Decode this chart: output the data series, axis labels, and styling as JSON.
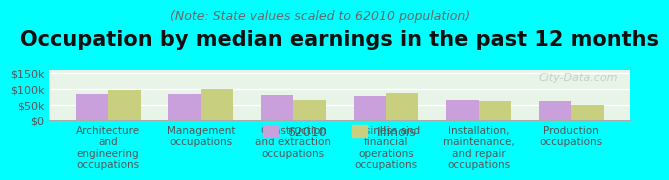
{
  "title": "Occupation by median earnings in the past 12 months",
  "subtitle": "(Note: State values scaled to 62010 population)",
  "categories": [
    "Architecture\nand\nengineering\noccupations",
    "Management\noccupations",
    "Construction\nand extraction\noccupations",
    "Business and\nfinancial\noperations\noccupations",
    "Installation,\nmaintenance,\nand repair\noccupations",
    "Production\noccupations"
  ],
  "values_62010": [
    85000,
    85000,
    80000,
    79000,
    65000,
    62000
  ],
  "values_illinois": [
    95000,
    99000,
    65000,
    87000,
    61000,
    48000
  ],
  "color_62010": "#c9a0dc",
  "color_illinois": "#c8d080",
  "background_color": "#00ffff",
  "plot_bg_gradient_top": "#e8f5e8",
  "plot_bg_gradient_bottom": "#f0f8f0",
  "ylim": [
    0,
    160000
  ],
  "yticks": [
    0,
    50000,
    100000,
    150000
  ],
  "ytick_labels": [
    "$0",
    "$50k",
    "$100k",
    "$150k"
  ],
  "bar_width": 0.35,
  "legend_label_62010": "62010",
  "legend_label_illinois": "Illinois",
  "watermark": "City-Data.com",
  "title_fontsize": 15,
  "subtitle_fontsize": 9,
  "tick_label_fontsize": 7.5,
  "legend_fontsize": 9,
  "ytick_fontsize": 8
}
